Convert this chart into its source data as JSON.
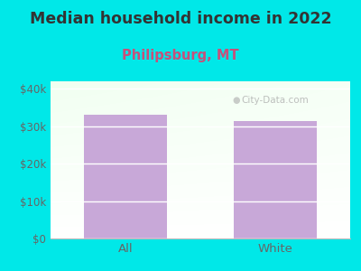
{
  "title": "Median household income in 2022",
  "subtitle": "Philipsburg, MT",
  "categories": [
    "All",
    "White"
  ],
  "values": [
    33000,
    31500
  ],
  "bar_color": "#c8a8d8",
  "outer_bg": "#00e8e8",
  "title_color": "#333333",
  "subtitle_color": "#c8507a",
  "tick_label_color": "#666666",
  "ylim": [
    0,
    42000
  ],
  "yticks": [
    0,
    10000,
    20000,
    30000,
    40000
  ],
  "ytick_labels": [
    "$0",
    "$10k",
    "$20k",
    "$30k",
    "$40k"
  ],
  "watermark": "City-Data.com",
  "title_fontsize": 12.5,
  "subtitle_fontsize": 10.5,
  "bar_width": 0.55
}
